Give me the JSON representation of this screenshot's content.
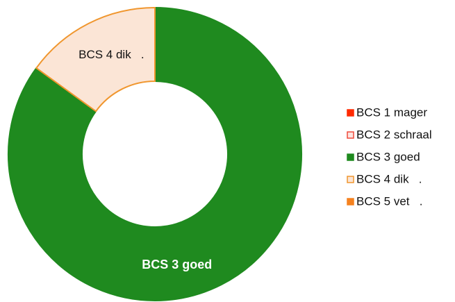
{
  "chart_data": {
    "type": "donut",
    "categories": [
      "BCS 1 mager",
      "BCS 2 schraal",
      "BCS 3 goed",
      "BCS 4 dik   .",
      "BCS 5 vet   ."
    ],
    "values": [
      0,
      0,
      85,
      15,
      0
    ],
    "colors": [
      "#ff2a00",
      "#fde4e0",
      "#1f8a1f",
      "#fbe5d6",
      "#f5821f"
    ],
    "edge_colors": [
      "#ff2a00",
      "#ef4a3a",
      "#1f8a1f",
      "#f0962e",
      "#f5821f"
    ],
    "legend": "right"
  }
}
